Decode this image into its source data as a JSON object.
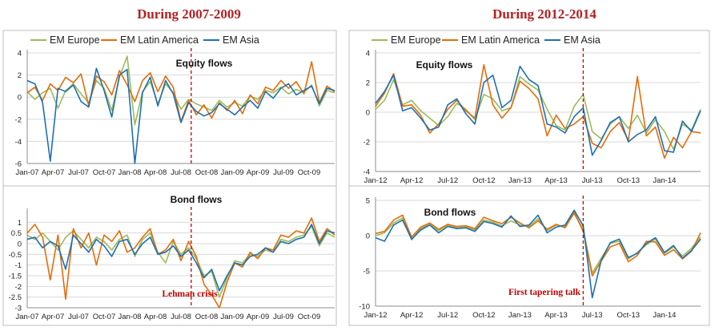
{
  "headings": [
    "During 2007-2009",
    "During 2012-2014"
  ],
  "colors": {
    "EM Europe": "#9bbb59",
    "EM Latin America": "#e36c0a",
    "EM Asia": "#1f6fb2",
    "event_line": "#c00000",
    "heading": "#b22222"
  },
  "chart_data": [
    {
      "id": "p2007eq",
      "type": "line",
      "title": "Equity flows",
      "y_ticks": [
        4,
        2,
        0,
        -2,
        -4,
        -6
      ],
      "ylim": [
        -6,
        4
      ],
      "x_ticks": [
        "Jan-07",
        "Apr-07",
        "Jul-07",
        "Oct-07",
        "Jan-08",
        "Apr-08",
        "Jul-08",
        "Oct-08",
        "Jan-09",
        "Apr-09",
        "Jul-09",
        "Oct-09"
      ],
      "legend": [
        "EM Europe",
        "EM Latin America",
        "EM Asia"
      ],
      "event": {
        "x": 6.4
      },
      "series": [
        {
          "name": "EM Europe",
          "x": [
            0,
            0.3,
            0.6,
            0.9,
            1.2,
            1.5,
            1.8,
            2.1,
            2.4,
            2.7,
            3,
            3.3,
            3.6,
            3.9,
            4.2,
            4.5,
            4.8,
            5.1,
            5.4,
            5.7,
            6,
            6.3,
            6.6,
            6.9,
            7.2,
            7.5,
            7.8,
            8.1,
            8.4,
            8.7,
            9,
            9.3,
            9.6,
            9.9,
            10.2,
            10.5,
            10.8,
            11.1,
            11.4,
            11.7,
            12
          ],
          "y": [
            0.5,
            -0.2,
            0.4,
            0.8,
            -1,
            0.6,
            1.2,
            0.3,
            -0.5,
            1.5,
            0.8,
            -1.2,
            1.8,
            3.7,
            -2.5,
            0.5,
            1.4,
            -0.6,
            1.2,
            0.4,
            -1.1,
            -0.2,
            -0.6,
            -0.9,
            -1.2,
            -0.3,
            -0.9,
            -0.5,
            -0.8,
            0.1,
            -0.2,
            0.6,
            0.4,
            0.9,
            0.3,
            0.7,
            0.4,
            1.1,
            -0.8,
            0.6,
            0.4
          ]
        },
        {
          "name": "EM Latin America",
          "x": [
            0,
            0.3,
            0.6,
            0.9,
            1.2,
            1.5,
            1.8,
            2.1,
            2.4,
            2.7,
            3,
            3.3,
            3.6,
            3.9,
            4.2,
            4.5,
            4.8,
            5.1,
            5.4,
            5.7,
            6,
            6.3,
            6.6,
            6.9,
            7.2,
            7.5,
            7.8,
            8.1,
            8.4,
            8.7,
            9,
            9.3,
            9.6,
            9.9,
            10.2,
            10.5,
            10.8,
            11.1,
            11.4,
            11.7,
            12
          ],
          "y": [
            0.4,
            0.9,
            -0.3,
            1.2,
            0.6,
            1.8,
            1.3,
            2.1,
            -0.8,
            1.9,
            1.4,
            0.2,
            2.4,
            1.1,
            -0.4,
            1.5,
            2.2,
            0.5,
            1.9,
            0.9,
            -2.2,
            -0.3,
            -1.6,
            -0.7,
            -1.9,
            -0.5,
            -1.2,
            -0.3,
            -1.5,
            0.2,
            -0.6,
            0.9,
            0.6,
            1.5,
            0.8,
            1.4,
            0.3,
            3.2,
            -0.5,
            1,
            0.5
          ]
        },
        {
          "name": "EM Asia",
          "x": [
            0,
            0.3,
            0.6,
            0.9,
            1.2,
            1.5,
            1.8,
            2.1,
            2.4,
            2.7,
            3,
            3.3,
            3.6,
            3.9,
            4.2,
            4.5,
            4.8,
            5.1,
            5.4,
            5.7,
            6,
            6.3,
            6.6,
            6.9,
            7.2,
            7.5,
            7.8,
            8.1,
            8.4,
            8.7,
            9,
            9.3,
            9.6,
            9.9,
            10.2,
            10.5,
            10.8,
            11.1,
            11.4,
            11.7,
            12
          ],
          "y": [
            1.5,
            1.2,
            -0.5,
            -5.8,
            0.8,
            0.5,
            1.1,
            -0.4,
            -0.9,
            2.6,
            0.6,
            -1.8,
            2,
            2.5,
            -6,
            0.4,
            1.8,
            -0.8,
            1.5,
            0.3,
            -2.3,
            -0.5,
            -1.3,
            -1.7,
            -1.4,
            -0.6,
            -1.1,
            -1.6,
            -0.9,
            -0.3,
            -1,
            0.5,
            -0.1,
            0.8,
            1.2,
            0.2,
            0.6,
            1,
            -0.6,
            0.8,
            0.6
          ]
        }
      ]
    },
    {
      "id": "p2007bd",
      "type": "line",
      "title": "Bond flows",
      "y_ticks": [
        1,
        0.5,
        0,
        -0.5,
        -1,
        -1.5,
        -2,
        -2.5,
        -3
      ],
      "ylim": [
        -3,
        1.5
      ],
      "x_ticks": [
        "Jan-07",
        "Apr-07",
        "Jul-07",
        "Oct-07",
        "Jan-08",
        "Apr-08",
        "Jul-08",
        "Oct-08",
        "Jan-09",
        "Apr-09",
        "Jul-09",
        "Oct-09"
      ],
      "event": {
        "x": 6.4
      },
      "annotation": "Lehman crisis",
      "series": [
        {
          "name": "EM Europe",
          "x": [
            0,
            0.3,
            0.6,
            0.9,
            1.2,
            1.5,
            1.8,
            2.1,
            2.4,
            2.7,
            3,
            3.3,
            3.6,
            3.9,
            4.2,
            4.5,
            4.8,
            5.1,
            5.4,
            5.7,
            6,
            6.3,
            6.6,
            6.9,
            7.2,
            7.5,
            7.8,
            8.1,
            8.4,
            8.7,
            9,
            9.3,
            9.6,
            9.9,
            10.2,
            10.5,
            10.8,
            11.1,
            11.4,
            11.7,
            12
          ],
          "y": [
            0.4,
            0.2,
            0.5,
            0.1,
            -0.3,
            0.3,
            0.6,
            0.2,
            -0.2,
            0.3,
            0.1,
            -0.3,
            0.2,
            0.4,
            -0.6,
            0.2,
            0.5,
            -0.4,
            -0.9,
            0.1,
            -0.5,
            -0.2,
            -0.7,
            -1.5,
            -1.3,
            -2.5,
            -1.6,
            -0.8,
            -0.9,
            -0.5,
            -0.6,
            -0.3,
            -0.4,
            0.2,
            0.1,
            0.3,
            0.4,
            0.8,
            -0.1,
            0.5,
            0.3
          ]
        },
        {
          "name": "EM Latin America",
          "x": [
            0,
            0.3,
            0.6,
            0.9,
            1.2,
            1.5,
            1.8,
            2.1,
            2.4,
            2.7,
            3,
            3.3,
            3.6,
            3.9,
            4.2,
            4.5,
            4.8,
            5.1,
            5.4,
            5.7,
            6,
            6.3,
            6.6,
            6.9,
            7.2,
            7.5,
            7.8,
            8.1,
            8.4,
            8.7,
            9,
            9.3,
            9.6,
            9.9,
            10.2,
            10.5,
            10.8,
            11.1,
            11.4,
            11.7,
            12
          ],
          "y": [
            0.5,
            0.9,
            0.3,
            -1.7,
            0.4,
            -2.6,
            0.7,
            -0.2,
            0.5,
            -1,
            0.4,
            0.1,
            0.6,
            -0.4,
            -0.2,
            0.3,
            0.7,
            -0.5,
            -0.3,
            0.2,
            -0.8,
            0.1,
            -0.6,
            -1.9,
            -2.4,
            -3,
            -1.8,
            -0.9,
            -1.1,
            -0.4,
            -0.7,
            -0.2,
            -0.3,
            0.4,
            0.3,
            0.6,
            0.5,
            1.2,
            0.1,
            0.7,
            0.4
          ]
        },
        {
          "name": "EM Asia",
          "x": [
            0,
            0.3,
            0.6,
            0.9,
            1.2,
            1.5,
            1.8,
            2.1,
            2.4,
            2.7,
            3,
            3.3,
            3.6,
            3.9,
            4.2,
            4.5,
            4.8,
            5.1,
            5.4,
            5.7,
            6,
            6.3,
            6.6,
            6.9,
            7.2,
            7.5,
            7.8,
            8.1,
            8.4,
            8.7,
            9,
            9.3,
            9.6,
            9.9,
            10.2,
            10.5,
            10.8,
            11.1,
            11.4,
            11.7,
            12
          ],
          "y": [
            0.2,
            0.3,
            -0.2,
            0.1,
            -0.1,
            -1.2,
            0.4,
            0,
            -0.4,
            0.2,
            -0.1,
            -0.6,
            0.1,
            0.2,
            -0.5,
            0,
            0.3,
            -0.5,
            -0.4,
            -0.1,
            -0.6,
            -0.3,
            -0.9,
            -1.6,
            -1.2,
            -2.2,
            -1.5,
            -0.9,
            -1,
            -0.6,
            -0.5,
            -0.2,
            -0.4,
            0.1,
            0,
            0.2,
            0.3,
            0.9,
            0,
            0.6,
            0.5
          ]
        }
      ]
    },
    {
      "id": "p2012eq",
      "type": "line",
      "title": "Equity flows",
      "y_ticks": [
        4,
        2,
        0,
        -2,
        -4
      ],
      "ylim": [
        -4,
        4
      ],
      "x_ticks": [
        "Jan-12",
        "Apr-12",
        "Jul-12",
        "Oct-12",
        "Jan-13",
        "Apr-13",
        "Jul-13",
        "Oct-13",
        "Jan-14"
      ],
      "legend": [
        "EM Europe",
        "EM Latin America",
        "EM Asia"
      ],
      "event": {
        "x": 5.75
      },
      "series": [
        {
          "name": "EM Europe",
          "x": [
            0,
            0.25,
            0.5,
            0.75,
            1,
            1.25,
            1.5,
            1.75,
            2,
            2.25,
            2.5,
            2.75,
            3,
            3.25,
            3.5,
            3.75,
            4,
            4.25,
            4.5,
            4.75,
            5,
            5.25,
            5.5,
            5.75,
            6,
            6.25,
            6.5,
            6.75,
            7,
            7.25,
            7.5,
            7.75,
            8,
            8.25,
            8.5,
            8.75,
            9
          ],
          "y": [
            0.2,
            0.8,
            2.2,
            0.5,
            0.8,
            0.1,
            -0.4,
            -0.9,
            -0.3,
            0.6,
            0.2,
            -0.5,
            1.2,
            0.9,
            0.1,
            0.3,
            2.4,
            1.9,
            1.5,
            0.2,
            -0.9,
            -1.2,
            0.4,
            1.2,
            -1.3,
            -1.8,
            -0.8,
            -0.3,
            -1.1,
            -0.2,
            -1.4,
            -0.5,
            -1.3,
            -2.5,
            -0.8,
            -1.2,
            0.2
          ]
        },
        {
          "name": "EM Latin America",
          "x": [
            0,
            0.25,
            0.5,
            0.75,
            1,
            1.25,
            1.5,
            1.75,
            2,
            2.25,
            2.5,
            2.75,
            3,
            3.25,
            3.5,
            3.75,
            4,
            4.25,
            4.5,
            4.75,
            5,
            5.25,
            5.5,
            5.75,
            6,
            6.25,
            6.5,
            6.75,
            7,
            7.25,
            7.5,
            7.75,
            8,
            8.25,
            8.5,
            8.75,
            9
          ],
          "y": [
            0.4,
            1.3,
            2.6,
            0.4,
            0.5,
            -0.2,
            -1.4,
            -0.8,
            0.2,
            0.8,
            0.1,
            -0.4,
            3.2,
            0.5,
            -0.4,
            0.3,
            2.1,
            1.6,
            0.9,
            -1.6,
            -0.2,
            -1.1,
            -0.8,
            -0.3,
            -2.1,
            -2.4,
            -1.3,
            -0.7,
            -1.9,
            2.4,
            -1.6,
            -1,
            -3.1,
            -1.7,
            -2.4,
            -1.3,
            -1.4
          ]
        },
        {
          "name": "EM Asia",
          "x": [
            0,
            0.25,
            0.5,
            0.75,
            1,
            1.25,
            1.5,
            1.75,
            2,
            2.25,
            2.5,
            2.75,
            3,
            3.25,
            3.5,
            3.75,
            4,
            4.25,
            4.5,
            4.75,
            5,
            5.25,
            5.5,
            5.75,
            6,
            6.25,
            6.5,
            6.75,
            7,
            7.25,
            7.5,
            7.75,
            8,
            8.25,
            8.5,
            8.75,
            9
          ],
          "y": [
            0.6,
            1.4,
            2.5,
            0.1,
            0.3,
            -0.4,
            -1.2,
            -1,
            0.5,
            0.9,
            -0.1,
            -0.8,
            2,
            2.5,
            0.3,
            0.8,
            3.1,
            2.2,
            1.8,
            -0.8,
            -1,
            -1.4,
            -0.3,
            0.3,
            -2.9,
            -1.9,
            -0.7,
            -0.3,
            -2,
            -1.5,
            -1.2,
            -0.3,
            -2.6,
            -2.7,
            -0.6,
            -1.3,
            0.1
          ]
        }
      ]
    },
    {
      "id": "p2012bd",
      "type": "line",
      "title": "Bond flows",
      "y_ticks": [
        5,
        0,
        -5,
        -10
      ],
      "ylim": [
        -10,
        5
      ],
      "x_ticks": [
        "Jan-12",
        "Apr-12",
        "Jul-12",
        "Oct-12",
        "Jan-13",
        "Apr-13",
        "Jul-13",
        "Oct-13",
        "Jan-14"
      ],
      "event": {
        "x": 5.75
      },
      "annotation": "First tapering talk",
      "series": [
        {
          "name": "EM Europe",
          "x": [
            0,
            0.25,
            0.5,
            0.75,
            1,
            1.25,
            1.5,
            1.75,
            2,
            2.25,
            2.5,
            2.75,
            3,
            3.25,
            3.5,
            3.75,
            4,
            4.25,
            4.5,
            4.75,
            5,
            5.25,
            5.5,
            5.75,
            6,
            6.25,
            6.5,
            6.75,
            7,
            7.25,
            7.5,
            7.75,
            8,
            8.25,
            8.5,
            8.75,
            9
          ],
          "y": [
            0,
            0.4,
            1.8,
            2.5,
            -0.6,
            1,
            1.6,
            0.7,
            1.5,
            1.1,
            1.2,
            0.8,
            2.2,
            1.9,
            1.4,
            2.1,
            1.5,
            1.3,
            2.4,
            0.7,
            1.5,
            1.3,
            3.1,
            0.9,
            -5.3,
            -3.2,
            -1.1,
            -0.8,
            -3.3,
            -2.4,
            -1.3,
            -0.5,
            -2.5,
            -1.6,
            -2.9,
            -1.8,
            -0.2
          ]
        },
        {
          "name": "EM Latin America",
          "x": [
            0,
            0.25,
            0.5,
            0.75,
            1,
            1.25,
            1.5,
            1.75,
            2,
            2.25,
            2.5,
            2.75,
            3,
            3.25,
            3.5,
            3.75,
            4,
            4.25,
            4.5,
            4.75,
            5,
            5.25,
            5.5,
            5.75,
            6,
            6.25,
            6.5,
            6.75,
            7,
            7.25,
            7.5,
            7.75,
            8,
            8.25,
            8.5,
            8.75,
            9
          ],
          "y": [
            0.3,
            0.6,
            2.2,
            2.9,
            -0.2,
            1.2,
            1.8,
            0.9,
            1.6,
            1.3,
            1.4,
            1,
            2.6,
            2.1,
            1.7,
            2.6,
            1.8,
            1.1,
            2.1,
            0.9,
            1.6,
            1.1,
            3.3,
            0.6,
            -5.7,
            -3.6,
            -1.6,
            -1.1,
            -3.7,
            -2.8,
            -0.8,
            -0.9,
            -2.8,
            -2,
            -3.3,
            -2.2,
            0.4
          ]
        },
        {
          "name": "EM Asia",
          "x": [
            0,
            0.25,
            0.5,
            0.75,
            1,
            1.25,
            1.5,
            1.75,
            2,
            2.25,
            2.5,
            2.75,
            3,
            3.25,
            3.5,
            3.75,
            4,
            4.25,
            4.5,
            4.75,
            5,
            5.25,
            5.5,
            5.75,
            6,
            6.25,
            6.5,
            6.75,
            7,
            7.25,
            7.5,
            7.75,
            8,
            8.25,
            8.5,
            8.75,
            9
          ],
          "y": [
            -0.3,
            -0.8,
            1.5,
            2.2,
            -0.5,
            0.8,
            1.5,
            0.4,
            1.3,
            1,
            1.1,
            0.6,
            2,
            1.7,
            1.2,
            2.8,
            1.3,
            1.5,
            2.9,
            0.4,
            1.2,
            1.5,
            3.6,
            1.4,
            -8.8,
            -3.5,
            -1,
            -0.5,
            -3.1,
            -2.5,
            -1.1,
            -0.3,
            -2.4,
            -1.4,
            -3.2,
            -2.1,
            -0.5
          ]
        }
      ]
    }
  ]
}
